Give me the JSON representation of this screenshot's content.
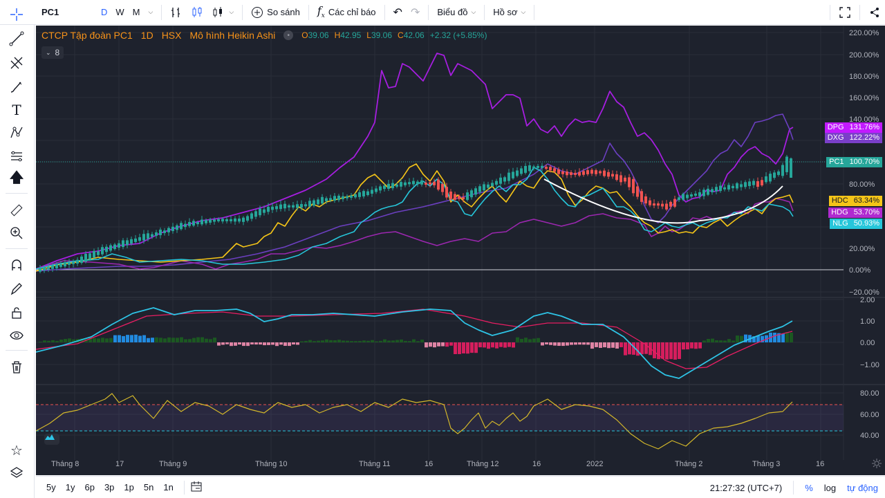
{
  "toolbar": {
    "symbol": "PC1",
    "intervals": [
      "D",
      "W",
      "M"
    ],
    "compare_label": "So sánh",
    "indicators_label": "Các chỉ báo",
    "chart_label": "Biểu đồ",
    "profile_label": "Hồ sơ"
  },
  "legend": {
    "title": "CTCP Tập đoàn PC1",
    "interval": "1D",
    "exchange": "HSX",
    "chart_type": "Mô hình Heikin Ashi",
    "open_label": "O",
    "open": "39.06",
    "high_label": "H",
    "high": "42.95",
    "low_label": "L",
    "low": "39.06",
    "close_label": "C",
    "close": "42.06",
    "change": "+2.32 (+5.85%)",
    "collapsed_count": "8"
  },
  "price_axis": [
    "220.00%",
    "200.00%",
    "180.00%",
    "160.00%",
    "140.00%",
    "80.00%",
    "20.00%",
    "0.00%",
    "−20.00%"
  ],
  "macd_axis": [
    "2.00",
    "1.00",
    "0.00",
    "−1.00"
  ],
  "rsi_axis": [
    "80.00",
    "60.00",
    "40.00"
  ],
  "time_axis": [
    "Tháng 8",
    "17",
    "Tháng 9",
    "Tháng 10",
    "Tháng 11",
    "16",
    "Tháng 12",
    "16",
    "2022",
    "Tháng 2",
    "Tháng 3",
    "16"
  ],
  "symbol_tags": [
    {
      "sym": "DPG",
      "pct": "131.76%",
      "color": "#c21aff"
    },
    {
      "sym": "DXG",
      "pct": "122.22%",
      "color": "#7a3fc9"
    },
    {
      "sym": "PC1",
      "pct": "100.70%",
      "color": "#26a69a"
    },
    {
      "sym": "HDC",
      "pct": "63.34%",
      "color": "#f5c518"
    },
    {
      "sym": "HDG",
      "pct": "53.70%",
      "color": "#b02ad0"
    },
    {
      "sym": "NLG",
      "pct": "50.93%",
      "color": "#26c6da"
    }
  ],
  "colors": {
    "background": "#1e222d",
    "up": "#26a69a",
    "down": "#ef5350",
    "dpg": "#a61ee0",
    "dxg": "#6b3fc0",
    "hdc": "#f5c518",
    "hdg": "#9c27b0",
    "nlg": "#26c6da",
    "macd": "#2ec4e6",
    "signal": "#e91e63",
    "rsi": "#d4b82a"
  },
  "bottom": {
    "ranges": [
      "5y",
      "1y",
      "6p",
      "3p",
      "1p",
      "5n",
      "1n"
    ],
    "time": "21:27:32 (UTC+7)",
    "percent": "%",
    "log": "log",
    "auto": "tự động"
  }
}
